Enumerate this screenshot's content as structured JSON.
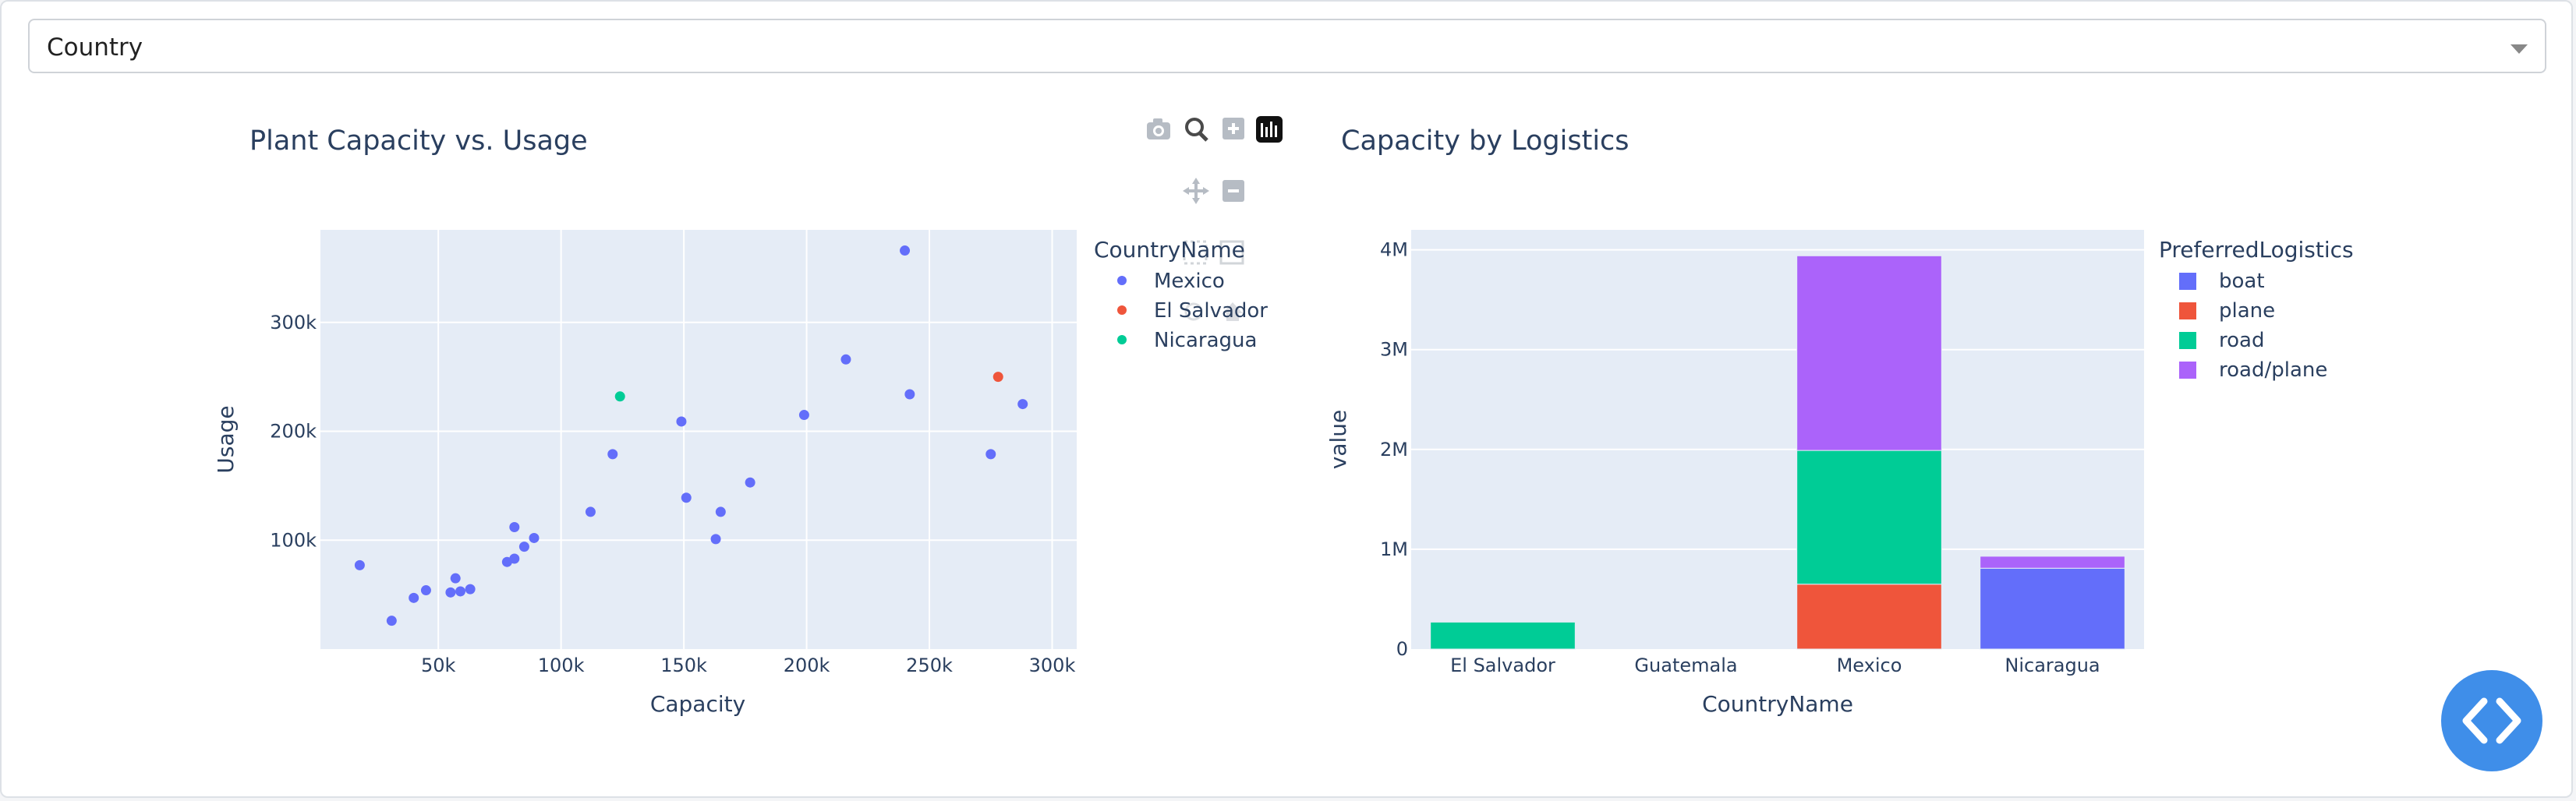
{
  "dropdown": {
    "selected": "Country"
  },
  "scatter_chart": {
    "title": "Plant Capacity vs. Usage",
    "xlabel": "Capacity",
    "ylabel": "Usage",
    "x_ticks": [
      "50k",
      "100k",
      "150k",
      "200k",
      "250k",
      "300k"
    ],
    "y_ticks": [
      "100k",
      "200k",
      "300k"
    ],
    "legend_title": "CountryName",
    "legend": [
      {
        "label": "Mexico",
        "color": "#636efa"
      },
      {
        "label": "El Salvador",
        "color": "#ef553b"
      },
      {
        "label": "Nicaragua",
        "color": "#00cc96"
      }
    ]
  },
  "bar_chart": {
    "title": "Capacity by Logistics",
    "xlabel": "CountryName",
    "ylabel": "value",
    "y_ticks": [
      "0",
      "1M",
      "2M",
      "3M",
      "4M"
    ],
    "legend_title": "PreferredLogistics",
    "legend": [
      {
        "label": "boat",
        "color": "#636efa"
      },
      {
        "label": "plane",
        "color": "#ef553b"
      },
      {
        "label": "road",
        "color": "#00cc96"
      },
      {
        "label": "road/plane",
        "color": "#ab63fa"
      }
    ]
  },
  "chart_data": [
    {
      "type": "scatter",
      "title": "Plant Capacity vs. Usage",
      "xlabel": "Capacity",
      "ylabel": "Usage",
      "xlim": [
        2000,
        310000
      ],
      "ylim": [
        0,
        385000
      ],
      "legend_title": "CountryName",
      "series": [
        {
          "name": "Mexico",
          "color": "#636efa",
          "points": [
            [
              18000,
              77000
            ],
            [
              31000,
              26000
            ],
            [
              40000,
              47000
            ],
            [
              45000,
              54000
            ],
            [
              55000,
              52000
            ],
            [
              57000,
              65000
            ],
            [
              59000,
              53000
            ],
            [
              63000,
              55000
            ],
            [
              78000,
              80000
            ],
            [
              81000,
              83000
            ],
            [
              81000,
              112000
            ],
            [
              85000,
              94000
            ],
            [
              89000,
              102000
            ],
            [
              112000,
              126000
            ],
            [
              121000,
              179000
            ],
            [
              149000,
              209000
            ],
            [
              151000,
              139000
            ],
            [
              163000,
              101000
            ],
            [
              165000,
              126000
            ],
            [
              177000,
              153000
            ],
            [
              199000,
              215000
            ],
            [
              216000,
              266000
            ],
            [
              240000,
              366000
            ],
            [
              242000,
              234000
            ],
            [
              275000,
              179000
            ],
            [
              288000,
              225000
            ]
          ]
        },
        {
          "name": "El Salvador",
          "color": "#ef553b",
          "points": [
            [
              278000,
              250000
            ]
          ]
        },
        {
          "name": "Nicaragua",
          "color": "#00cc96",
          "points": [
            [
              124000,
              232000
            ]
          ]
        }
      ]
    },
    {
      "type": "bar",
      "stacked": true,
      "title": "Capacity by Logistics",
      "xlabel": "CountryName",
      "ylabel": "value",
      "ylim": [
        0,
        4200000
      ],
      "legend_title": "PreferredLogistics",
      "categories": [
        "El Salvador",
        "Guatemala",
        "Mexico",
        "Nicaragua"
      ],
      "series": [
        {
          "name": "boat",
          "color": "#636efa",
          "values": [
            0,
            0,
            0,
            810000
          ]
        },
        {
          "name": "plane",
          "color": "#ef553b",
          "values": [
            0,
            0,
            650000,
            0
          ]
        },
        {
          "name": "road",
          "color": "#00cc96",
          "values": [
            270000,
            0,
            1340000,
            0
          ]
        },
        {
          "name": "road/plane",
          "color": "#ab63fa",
          "values": [
            0,
            0,
            1950000,
            120000
          ]
        }
      ]
    }
  ]
}
